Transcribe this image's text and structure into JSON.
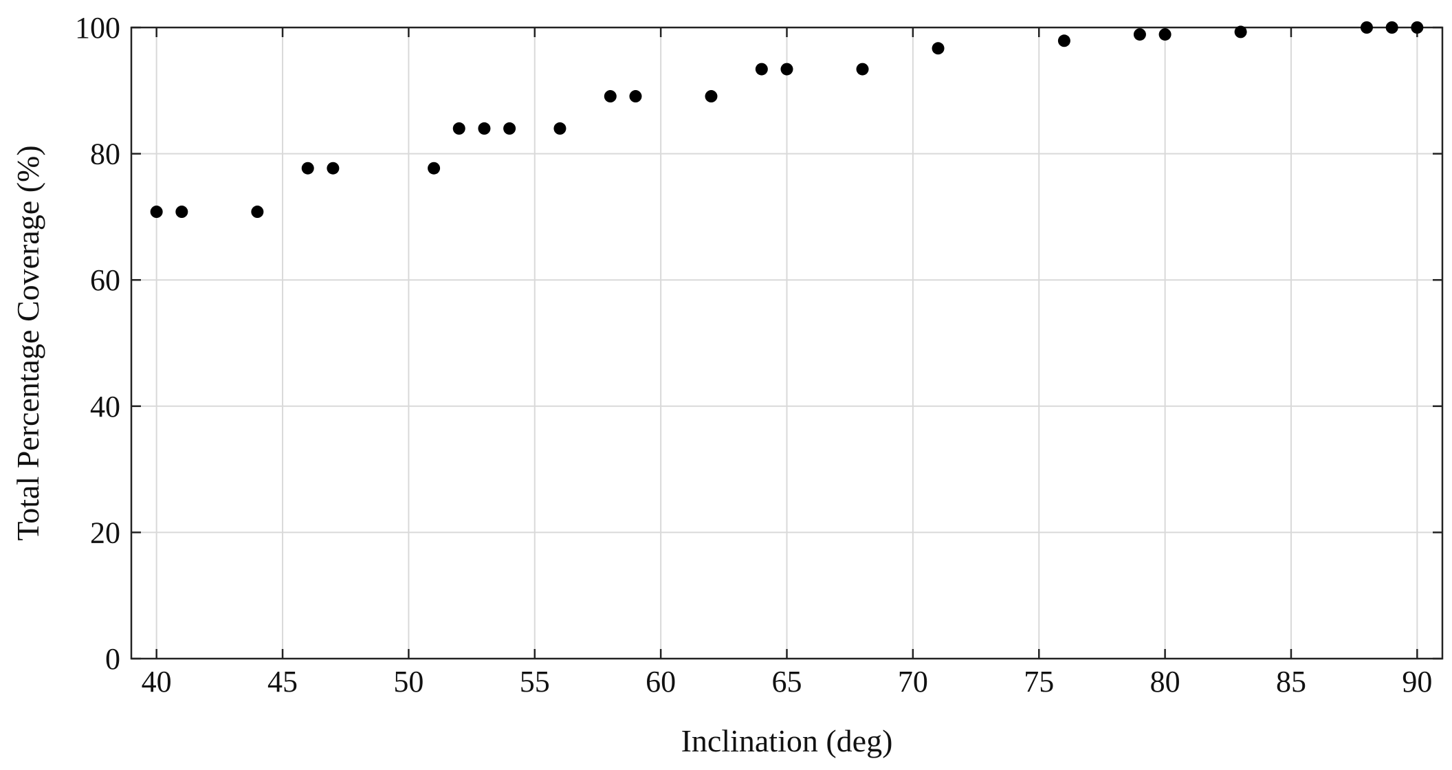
{
  "chart_data": {
    "type": "scatter",
    "title": "",
    "xlabel": "Inclination (deg)",
    "ylabel": "Total Percentage Coverage (%)",
    "xlim": [
      39,
      91
    ],
    "ylim": [
      0,
      100
    ],
    "xticks": [
      40,
      45,
      50,
      55,
      60,
      65,
      70,
      75,
      80,
      85,
      90
    ],
    "yticks": [
      0,
      20,
      40,
      60,
      80,
      100
    ],
    "grid": true,
    "marker_color": "#000000",
    "points": [
      {
        "x": 40,
        "y": 70.8
      },
      {
        "x": 41,
        "y": 70.8
      },
      {
        "x": 44,
        "y": 70.8
      },
      {
        "x": 46,
        "y": 77.7
      },
      {
        "x": 47,
        "y": 77.7
      },
      {
        "x": 51,
        "y": 77.7
      },
      {
        "x": 52,
        "y": 84.0
      },
      {
        "x": 53,
        "y": 84.0
      },
      {
        "x": 54,
        "y": 84.0
      },
      {
        "x": 56,
        "y": 84.0
      },
      {
        "x": 58,
        "y": 89.1
      },
      {
        "x": 59,
        "y": 89.1
      },
      {
        "x": 62,
        "y": 89.1
      },
      {
        "x": 64,
        "y": 93.4
      },
      {
        "x": 65,
        "y": 93.4
      },
      {
        "x": 68,
        "y": 93.4
      },
      {
        "x": 71,
        "y": 96.7
      },
      {
        "x": 76,
        "y": 97.9
      },
      {
        "x": 79,
        "y": 98.9
      },
      {
        "x": 80,
        "y": 98.9
      },
      {
        "x": 83,
        "y": 99.3
      },
      {
        "x": 88,
        "y": 100
      },
      {
        "x": 89,
        "y": 100
      },
      {
        "x": 90,
        "y": 100
      }
    ]
  }
}
